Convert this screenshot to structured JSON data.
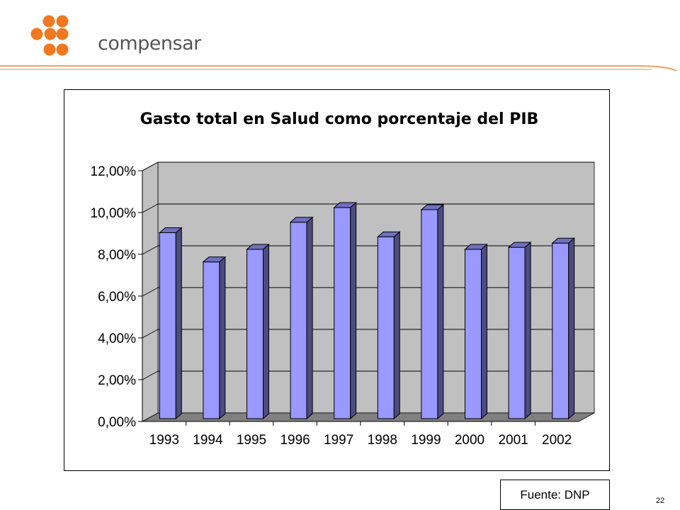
{
  "header": {
    "logo_text": "compensar",
    "brand_color": "#F07820",
    "line_color": "#F0A060"
  },
  "footer": {
    "source": "Fuente: DNP",
    "page_number": "22"
  },
  "chart_data": {
    "type": "bar",
    "title": "Gasto total en Salud como porcentaje del PIB",
    "xlabel": "",
    "ylabel": "",
    "categories": [
      "1993",
      "1994",
      "1995",
      "1996",
      "1997",
      "1998",
      "1999",
      "2000",
      "2001",
      "2002"
    ],
    "values": [
      8.9,
      7.5,
      8.1,
      9.4,
      10.1,
      8.7,
      10.0,
      8.1,
      8.2,
      8.4
    ],
    "ylim": [
      0,
      12
    ],
    "ytick_labels": [
      "0,00%",
      "2,00%",
      "4,00%",
      "6,00%",
      "8,00%",
      "10,00%",
      "12,00%"
    ],
    "grid": true,
    "legend": "none",
    "bar_color": "#9999FF",
    "wall_color": "#C0C0C0",
    "floor_color": "#808080"
  }
}
